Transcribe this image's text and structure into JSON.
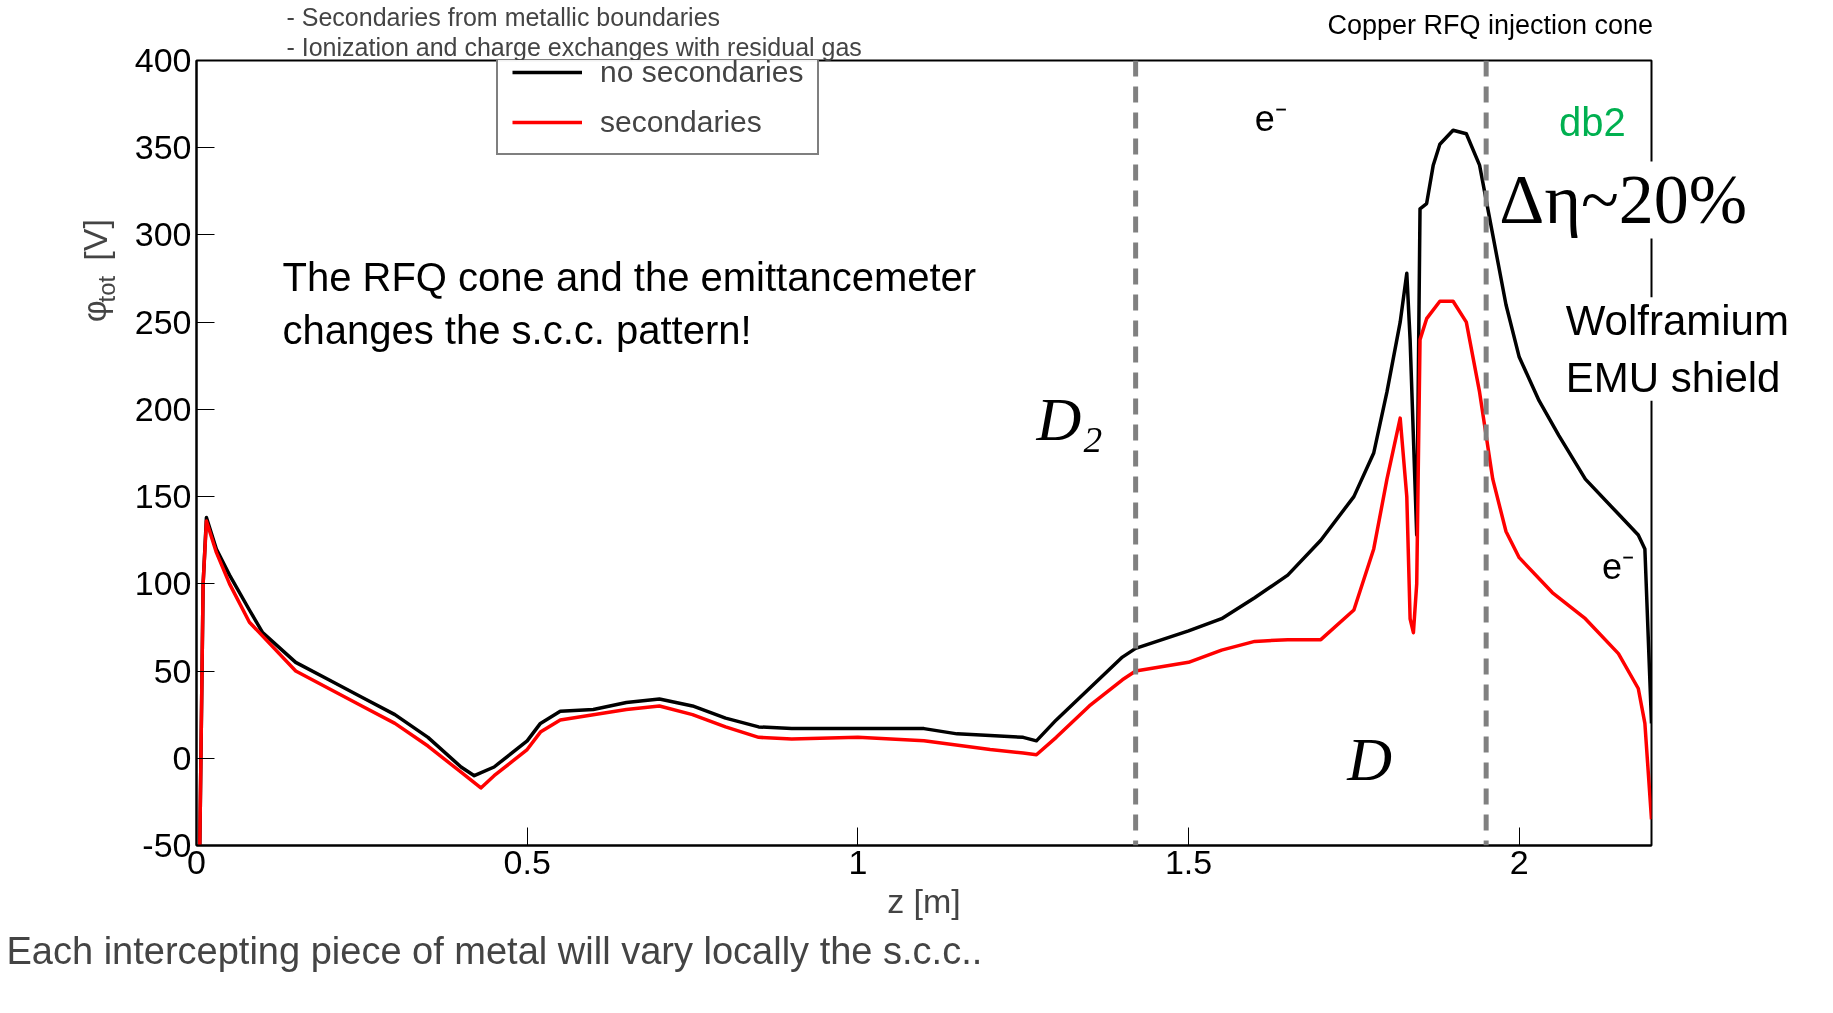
{
  "chart_data": {
    "type": "line",
    "xlabel": "z [m]",
    "ylabel": "φ$_{tot}$ [V]",
    "xlim": [
      0,
      2.2
    ],
    "ylim": [
      -50,
      400
    ],
    "xticks": [
      0,
      0.5,
      1,
      1.5,
      2
    ],
    "yticks": [
      -50,
      0,
      50,
      100,
      150,
      200,
      250,
      300,
      350,
      400
    ],
    "grid": false,
    "legend": "top",
    "line_style": "solid",
    "marker": "none",
    "series": [
      {
        "name": "no secondaries",
        "color": "#000000",
        "x": [
          0.005,
          0.01,
          0.015,
          0.03,
          0.05,
          0.08,
          0.1,
          0.15,
          0.2,
          0.25,
          0.3,
          0.35,
          0.4,
          0.42,
          0.45,
          0.5,
          0.52,
          0.55,
          0.6,
          0.65,
          0.7,
          0.75,
          0.8,
          0.85,
          0.9,
          1.0,
          1.05,
          1.1,
          1.15,
          1.2,
          1.25,
          1.27,
          1.3,
          1.35,
          1.4,
          1.42,
          1.5,
          1.55,
          1.6,
          1.65,
          1.7,
          1.75,
          1.78,
          1.8,
          1.82,
          1.83,
          1.835,
          1.845,
          1.85,
          1.86,
          1.87,
          1.88,
          1.9,
          1.92,
          1.94,
          1.96,
          1.98,
          2.0,
          2.03,
          2.06,
          2.1,
          2.15,
          2.18,
          2.19,
          2.2
        ],
        "values": [
          -50,
          100,
          138,
          120,
          105,
          85,
          72,
          55,
          45,
          35,
          25,
          12,
          -5,
          -10,
          -5,
          10,
          20,
          27,
          28,
          32,
          34,
          30,
          23,
          18,
          17,
          17,
          17,
          17,
          14,
          13,
          12,
          10,
          22,
          40,
          58,
          63,
          73,
          80,
          92,
          105,
          125,
          150,
          175,
          210,
          250,
          278,
          240,
          128,
          315,
          318,
          340,
          352,
          360,
          358,
          340,
          300,
          260,
          230,
          205,
          185,
          160,
          140,
          128,
          120,
          20
        ]
      },
      {
        "name": "secondaries",
        "color": "#ff0000",
        "x": [
          0.005,
          0.01,
          0.015,
          0.03,
          0.05,
          0.08,
          0.1,
          0.15,
          0.2,
          0.25,
          0.3,
          0.35,
          0.4,
          0.43,
          0.45,
          0.5,
          0.52,
          0.55,
          0.6,
          0.65,
          0.7,
          0.75,
          0.8,
          0.85,
          0.9,
          1.0,
          1.1,
          1.2,
          1.25,
          1.27,
          1.3,
          1.35,
          1.4,
          1.42,
          1.5,
          1.55,
          1.6,
          1.65,
          1.7,
          1.75,
          1.78,
          1.8,
          1.82,
          1.83,
          1.835,
          1.84,
          1.845,
          1.85,
          1.86,
          1.88,
          1.9,
          1.92,
          1.94,
          1.96,
          1.98,
          2.0,
          2.05,
          2.1,
          2.15,
          2.18,
          2.19,
          2.2
        ],
        "values": [
          -50,
          100,
          136,
          118,
          100,
          78,
          70,
          50,
          40,
          30,
          20,
          7,
          -8,
          -17,
          -10,
          5,
          15,
          22,
          25,
          28,
          30,
          25,
          18,
          12,
          11,
          12,
          10,
          5,
          3,
          2,
          12,
          30,
          45,
          50,
          55,
          62,
          67,
          68,
          68,
          85,
          120,
          160,
          195,
          150,
          80,
          72,
          100,
          240,
          252,
          262,
          262,
          250,
          210,
          160,
          130,
          115,
          95,
          80,
          60,
          40,
          20,
          -35
        ]
      }
    ],
    "ref_lines": [
      {
        "axis": "x",
        "value": 1.42,
        "color": "#808080",
        "line_style": "dashed"
      },
      {
        "axis": "x",
        "value": 1.95,
        "color": "#808080",
        "line_style": "dashed"
      }
    ],
    "annotations": [
      "Copper RFQ injection cone",
      "db2",
      "Δη~20%",
      "Wolframium\nEMU shield",
      "The RFQ cone and the emittancemeter\nchanges the s.c.c. pattern!",
      "D₂",
      "D",
      "e⁻",
      "e⁻",
      "-        Secondaries from metallic boundaries",
      "-        Ionization and charge exchanges with residual gas",
      "Each intercepting piece of metal will vary locally the s.c.c.."
    ]
  }
}
